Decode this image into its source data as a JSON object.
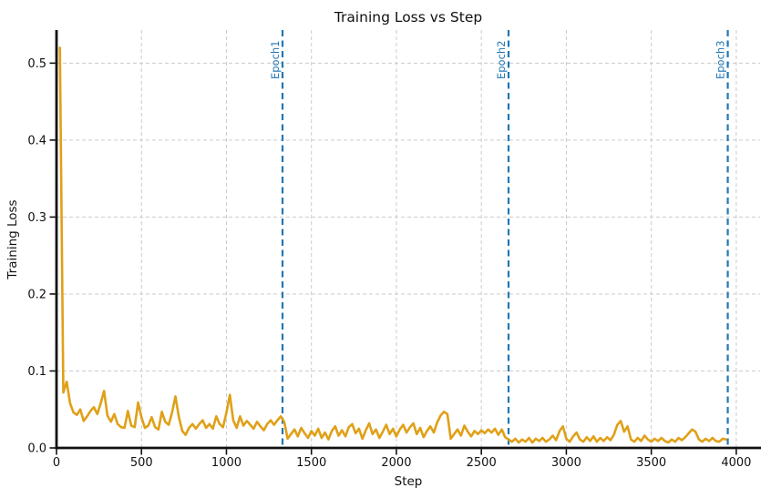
{
  "figure": {
    "title": "Training Loss vs Step",
    "xlabel": "Step",
    "ylabel": "Training Loss"
  },
  "chart_data": {
    "type": "line",
    "title": "Training Loss vs Step",
    "xlabel": "Step",
    "ylabel": "Training Loss",
    "xlim": [
      0,
      4140
    ],
    "ylim": [
      0,
      0.543
    ],
    "x_ticks": [
      0,
      500,
      1000,
      1500,
      2000,
      2500,
      3000,
      3500,
      4000
    ],
    "y_ticks": [
      0.0,
      0.1,
      0.2,
      0.3,
      0.4,
      0.5
    ],
    "grid": true,
    "legend_position": "none",
    "colors": {
      "loss_line": "#E0A018",
      "epoch_line": "#2277B4",
      "grid": "#cbcbcb",
      "axis": "#111111"
    },
    "epoch_markers": [
      {
        "label": "Epoch1",
        "step": 1330
      },
      {
        "label": "Epoch2",
        "step": 2660
      },
      {
        "label": "Epoch3",
        "step": 3950
      }
    ],
    "series": [
      {
        "name": "training-loss",
        "x_start": 20,
        "x_interval": 20,
        "y": [
          0.52,
          0.072,
          0.086,
          0.058,
          0.046,
          0.043,
          0.05,
          0.035,
          0.041,
          0.048,
          0.053,
          0.044,
          0.058,
          0.074,
          0.042,
          0.034,
          0.044,
          0.031,
          0.027,
          0.026,
          0.048,
          0.029,
          0.027,
          0.059,
          0.04,
          0.026,
          0.029,
          0.04,
          0.027,
          0.024,
          0.047,
          0.034,
          0.03,
          0.046,
          0.067,
          0.04,
          0.022,
          0.017,
          0.026,
          0.031,
          0.025,
          0.031,
          0.036,
          0.026,
          0.031,
          0.025,
          0.041,
          0.031,
          0.027,
          0.046,
          0.069,
          0.036,
          0.026,
          0.041,
          0.029,
          0.035,
          0.03,
          0.025,
          0.034,
          0.028,
          0.023,
          0.031,
          0.036,
          0.03,
          0.036,
          0.041,
          0.034,
          0.012,
          0.018,
          0.024,
          0.015,
          0.026,
          0.019,
          0.013,
          0.022,
          0.016,
          0.025,
          0.013,
          0.02,
          0.011,
          0.022,
          0.028,
          0.016,
          0.023,
          0.015,
          0.027,
          0.031,
          0.019,
          0.025,
          0.012,
          0.023,
          0.032,
          0.018,
          0.024,
          0.013,
          0.021,
          0.03,
          0.018,
          0.025,
          0.015,
          0.024,
          0.03,
          0.02,
          0.027,
          0.032,
          0.018,
          0.026,
          0.014,
          0.022,
          0.028,
          0.02,
          0.033,
          0.042,
          0.047,
          0.044,
          0.012,
          0.018,
          0.024,
          0.016,
          0.029,
          0.021,
          0.015,
          0.022,
          0.018,
          0.023,
          0.019,
          0.024,
          0.02,
          0.025,
          0.017,
          0.024,
          0.014,
          0.011,
          0.008,
          0.012,
          0.007,
          0.011,
          0.008,
          0.013,
          0.007,
          0.012,
          0.009,
          0.013,
          0.008,
          0.011,
          0.016,
          0.01,
          0.022,
          0.028,
          0.012,
          0.008,
          0.015,
          0.02,
          0.011,
          0.008,
          0.014,
          0.009,
          0.015,
          0.008,
          0.013,
          0.009,
          0.014,
          0.01,
          0.017,
          0.03,
          0.035,
          0.021,
          0.028,
          0.011,
          0.008,
          0.013,
          0.009,
          0.016,
          0.011,
          0.008,
          0.012,
          0.009,
          0.013,
          0.009,
          0.007,
          0.011,
          0.008,
          0.013,
          0.01,
          0.014,
          0.019,
          0.024,
          0.021,
          0.011,
          0.008,
          0.012,
          0.009,
          0.013,
          0.009,
          0.008,
          0.012,
          0.011
        ]
      }
    ]
  }
}
